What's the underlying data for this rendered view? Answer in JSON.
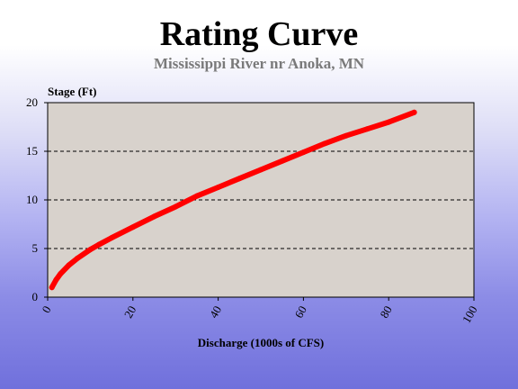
{
  "colors": {
    "plot_background": "#d8d2cc",
    "curve": "#ff0000",
    "subtitle": "#7a7a7a"
  },
  "chart_data": {
    "type": "line",
    "title": "Rating Curve",
    "subtitle": "Mississippi River nr Anoka, MN",
    "xlabel": "Discharge (1000s of CFS)",
    "ylabel": "Stage (Ft)",
    "xlim": [
      0,
      100
    ],
    "ylim": [
      0,
      20
    ],
    "xticks": [
      "0",
      "20",
      "40",
      "60",
      "80",
      "100"
    ],
    "yticks": [
      "0",
      "5",
      "10",
      "15",
      "20"
    ],
    "grid": "horizontal-dashed",
    "series": [
      {
        "x": [
          1,
          2,
          3,
          5,
          7,
          10,
          12,
          15,
          20,
          25,
          30,
          35,
          40,
          45,
          50,
          55,
          60,
          65,
          70,
          75,
          80,
          86
        ],
        "y": [
          1.0,
          1.8,
          2.4,
          3.3,
          4.0,
          4.9,
          5.4,
          6.1,
          7.2,
          8.3,
          9.3,
          10.4,
          11.3,
          12.2,
          13.1,
          14.0,
          14.9,
          15.8,
          16.6,
          17.3,
          18.0,
          19.0
        ]
      }
    ]
  }
}
